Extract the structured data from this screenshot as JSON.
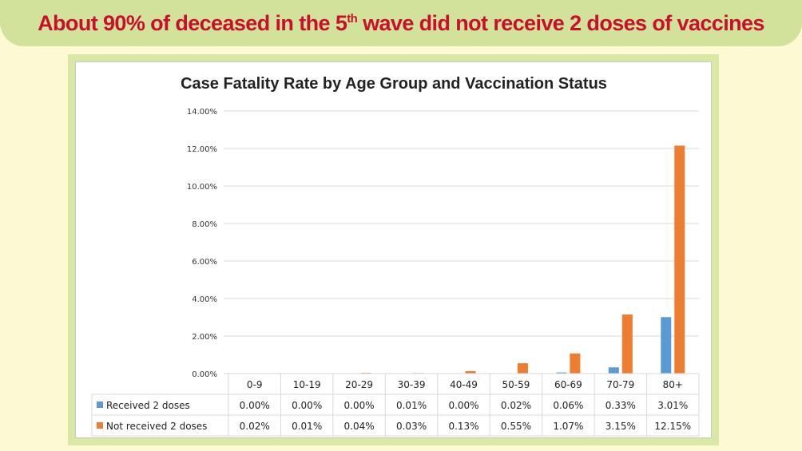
{
  "banner": {
    "before": "About 90% of deceased in the 5",
    "sup": "th",
    "after": " wave did not receive 2 doses of vaccines",
    "color": "#c8102e"
  },
  "chart_data": {
    "type": "bar",
    "title": "Case Fatality Rate by Age Group and Vaccination Status",
    "categories": [
      "0-9",
      "10-19",
      "20-29",
      "30-39",
      "40-49",
      "50-59",
      "60-69",
      "70-79",
      "80+"
    ],
    "ylim": [
      0,
      14
    ],
    "yticks": [
      "0.00%",
      "2.00%",
      "4.00%",
      "6.00%",
      "8.00%",
      "10.00%",
      "12.00%",
      "14.00%"
    ],
    "grid": true,
    "legend": "data-table",
    "series": [
      {
        "name": "Received 2 doses",
        "color": "#5b9bd5",
        "values": [
          0.0,
          0.0,
          0.0,
          0.01,
          0.0,
          0.02,
          0.06,
          0.33,
          3.01
        ],
        "labels": [
          "0.00%",
          "0.00%",
          "0.00%",
          "0.01%",
          "0.00%",
          "0.02%",
          "0.06%",
          "0.33%",
          "3.01%"
        ]
      },
      {
        "name": "Not received 2 doses",
        "color": "#ed7d31",
        "values": [
          0.02,
          0.01,
          0.04,
          0.03,
          0.13,
          0.55,
          1.07,
          3.15,
          12.15
        ],
        "labels": [
          "0.02%",
          "0.01%",
          "0.04%",
          "0.03%",
          "0.13%",
          "0.55%",
          "1.07%",
          "3.15%",
          "12.15%"
        ]
      }
    ]
  }
}
